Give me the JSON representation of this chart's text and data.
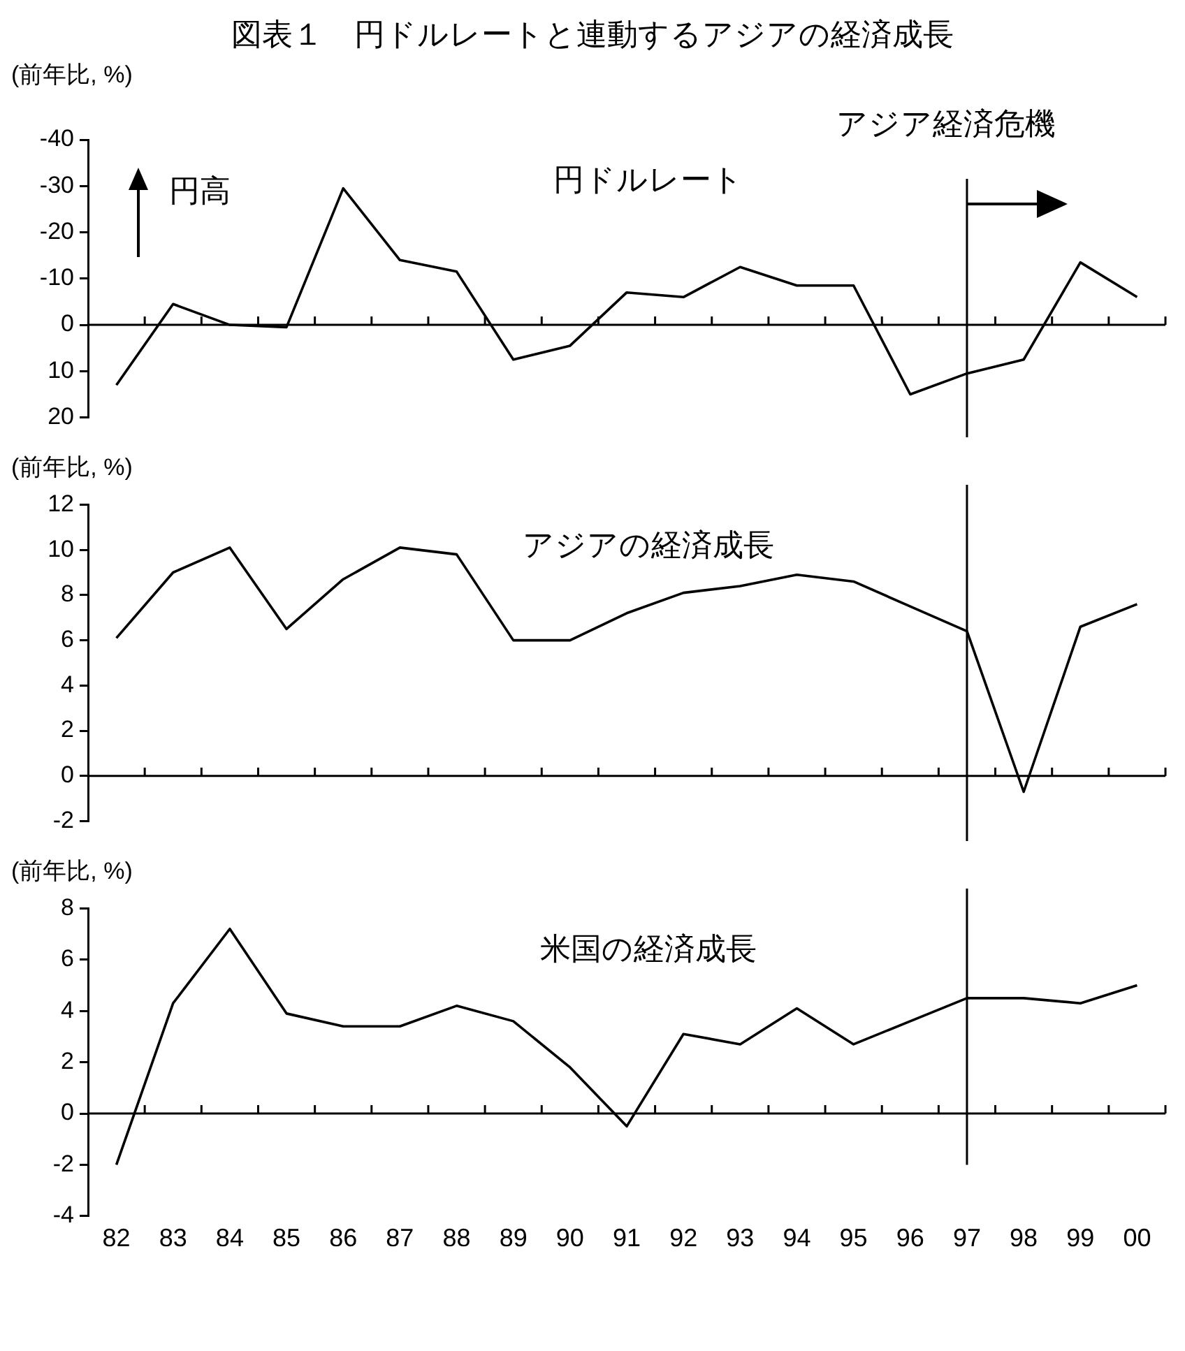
{
  "chart_data": [
    {
      "type": "line",
      "title": "図表１　円ドルレートと連動するアジアの経済成長",
      "ylabel": "(前年比, %)",
      "categories": [
        "82",
        "83",
        "84",
        "85",
        "86",
        "87",
        "88",
        "89",
        "90",
        "91",
        "92",
        "93",
        "94",
        "95",
        "96",
        "97",
        "98",
        "99",
        "00"
      ],
      "series": [
        {
          "name": "円ドルレート",
          "color": "#000000",
          "values": [
            13,
            -4.5,
            0,
            0.5,
            -29.5,
            -14,
            -11.5,
            7.5,
            4.5,
            -7,
            -6,
            -12.5,
            -8.5,
            -8.5,
            15,
            10.5,
            7.5,
            -13.5,
            -6
          ]
        }
      ],
      "ylim": [
        20,
        -40
      ],
      "yticks": [
        -40,
        -30,
        -20,
        -10,
        0,
        10,
        20
      ],
      "tick_labels": "y",
      "marker": "none",
      "line_style": "solid",
      "legend": false,
      "ref_lines": [
        {
          "axis": "x",
          "value": "97",
          "label": "アジア経済危機",
          "color": "#000000"
        }
      ],
      "annotations": [
        "円高"
      ]
    },
    {
      "type": "line",
      "ylabel": "(前年比, %)",
      "categories": [
        "82",
        "83",
        "84",
        "85",
        "86",
        "87",
        "88",
        "89",
        "90",
        "91",
        "92",
        "93",
        "94",
        "95",
        "96",
        "97",
        "98",
        "99",
        "00"
      ],
      "series": [
        {
          "name": "アジアの経済成長",
          "color": "#000000",
          "values": [
            6.1,
            9.0,
            10.1,
            6.5,
            8.7,
            10.1,
            9.8,
            6.0,
            6.0,
            7.2,
            8.1,
            8.4,
            8.9,
            8.6,
            7.5,
            6.4,
            -0.7,
            6.6,
            7.6
          ]
        }
      ],
      "ylim": [
        -2,
        12
      ],
      "yticks": [
        -2,
        0,
        2,
        4,
        6,
        8,
        10,
        12
      ],
      "tick_labels": "y",
      "marker": "none",
      "line_style": "solid",
      "legend": false,
      "ref_lines": [
        {
          "axis": "x",
          "value": "97",
          "color": "#000000"
        }
      ]
    },
    {
      "type": "line",
      "ylabel": "(前年比, %)",
      "categories": [
        "82",
        "83",
        "84",
        "85",
        "86",
        "87",
        "88",
        "89",
        "90",
        "91",
        "92",
        "93",
        "94",
        "95",
        "96",
        "97",
        "98",
        "99",
        "00"
      ],
      "series": [
        {
          "name": "米国の経済成長",
          "color": "#000000",
          "values": [
            -2.0,
            4.3,
            7.2,
            3.9,
            3.4,
            3.4,
            4.2,
            3.6,
            1.8,
            -0.5,
            3.1,
            2.7,
            4.1,
            2.7,
            3.6,
            4.5,
            4.5,
            4.3,
            5.0
          ]
        }
      ],
      "ylim": [
        -4,
        8
      ],
      "yticks": [
        -4,
        -2,
        0,
        2,
        4,
        6,
        8
      ],
      "marker": "none",
      "line_style": "solid",
      "legend": false,
      "ref_lines": [
        {
          "axis": "x",
          "value": "97",
          "color": "#000000"
        }
      ]
    }
  ]
}
